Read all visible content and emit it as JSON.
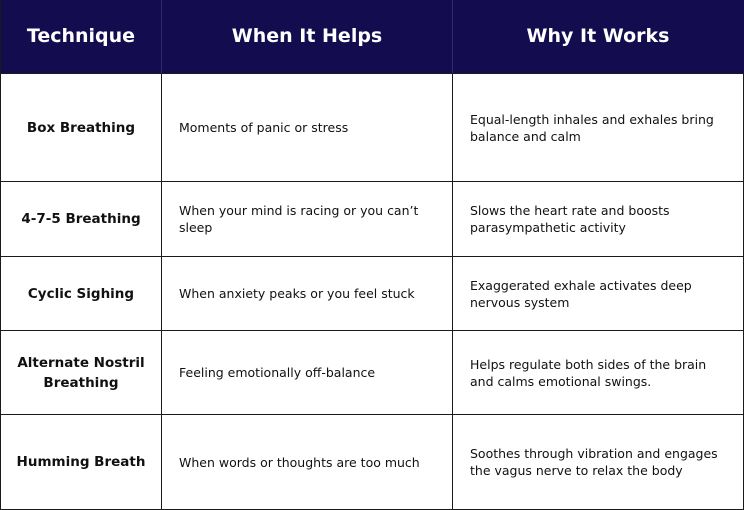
{
  "headers": [
    "Technique",
    "When It Helps",
    "Why It Works"
  ],
  "rows": [
    {
      "technique": "Box Breathing",
      "when": "Moments of panic or stress",
      "why": "Equal-length inhales and exhales bring balance and calm"
    },
    {
      "technique": "4-7-5 Breathing",
      "when": "When your mind is racing or you can’t sleep",
      "why": "Slows the heart rate and boosts parasympathetic activity"
    },
    {
      "technique": "Cyclic Sighing",
      "when": "When anxiety peaks or you feel stuck",
      "why": "Exaggerated exhale activates deep nervous system"
    },
    {
      "technique": "Alternate Nostril Breathing",
      "when": "Feeling emotionally off-balance",
      "why": "Helps regulate both sides of the brain and calms emotional swings."
    },
    {
      "technique": "Humming Breath",
      "when": "When words or thoughts are too much",
      "why": "Soothes through vibration and engages the vagus nerve to relax the body"
    }
  ],
  "colors": {
    "header_background": "#130d4f",
    "header_text": "#ffffff",
    "border": "#1a1a1a"
  }
}
